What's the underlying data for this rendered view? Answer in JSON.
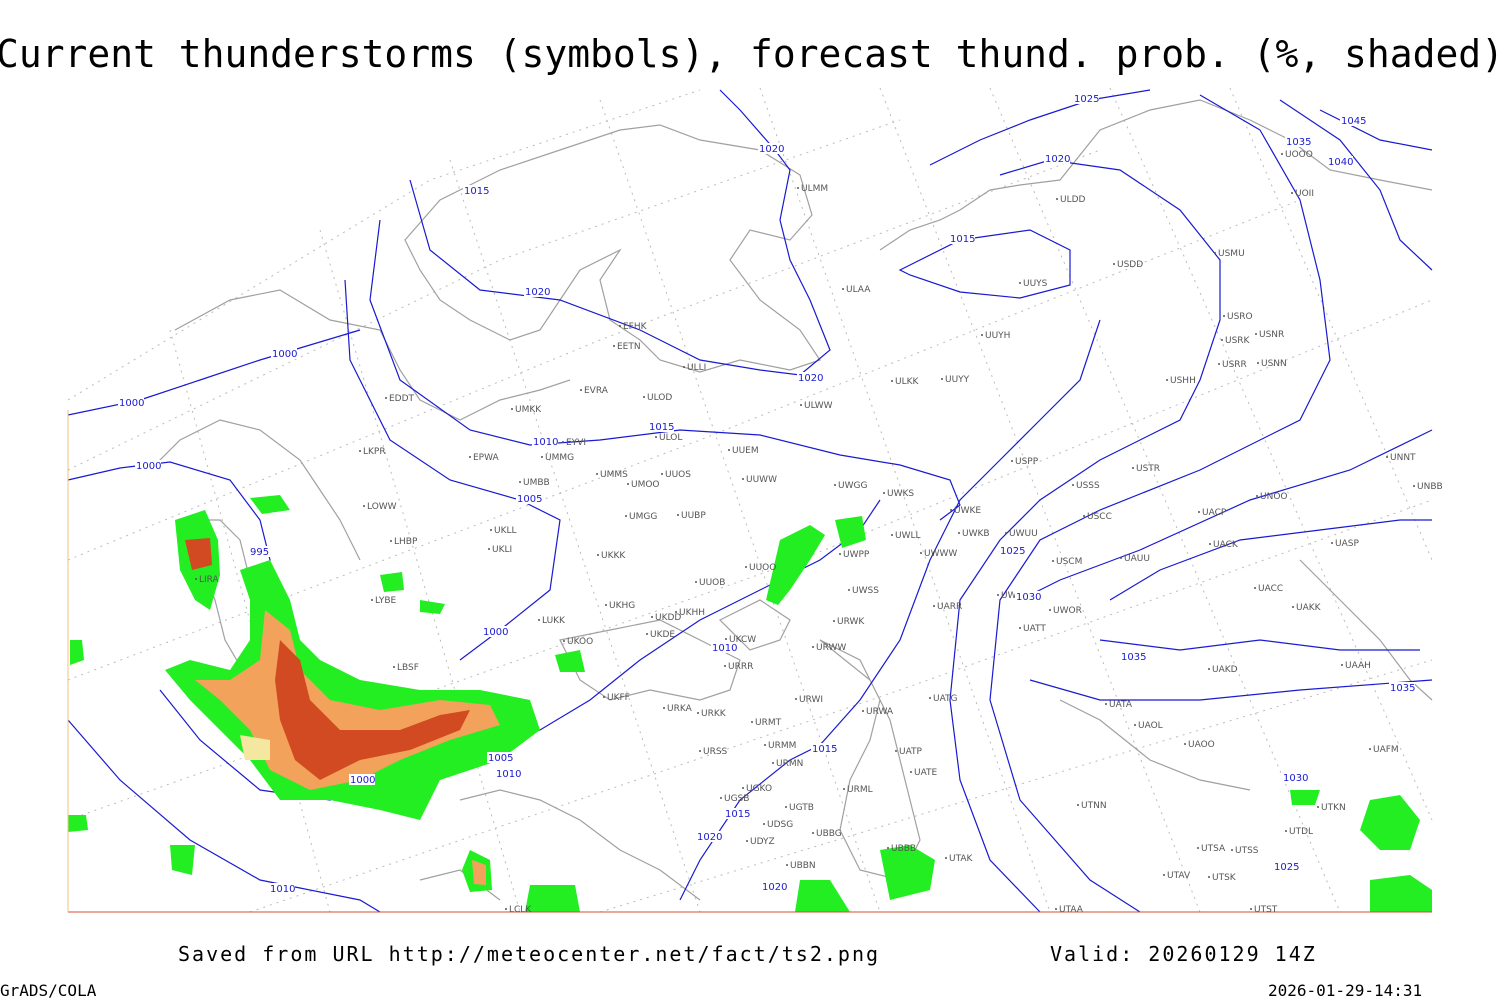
{
  "header": {
    "title": "Current thunderstorms (symbols), forecast thund. prob. (%, shaded)"
  },
  "footer": {
    "source": "Saved from URL http://meteocenter.net/fact/ts2.png",
    "valid": "Valid: 20260129 14Z",
    "software": "GrADS/COLA",
    "timestamp": "2026-01-29-14:31"
  },
  "isobar_labels": [
    1025,
    1035,
    1045,
    1040,
    1020,
    1020,
    1015,
    1015,
    1020,
    1000,
    1020,
    1000,
    1015,
    1010,
    1000,
    1005,
    995,
    1025,
    1030,
    1000,
    1010,
    1035,
    1035,
    1015,
    1005,
    1010,
    1000,
    1030,
    1015,
    1020,
    1025,
    1020,
    1010
  ],
  "stations": [
    "ULDD",
    "USDD",
    "USMU",
    "UUYS",
    "ULAA",
    "UUYH",
    "USRO",
    "USRK",
    "USNR",
    "USRR",
    "USNN",
    "USHH",
    "ULKK",
    "UUYY",
    "EFHK",
    "EETN",
    "ULLI",
    "EVRA",
    "ULOD",
    "EDDT",
    "ULWW",
    "UMKK",
    "ULOL",
    "EYVI",
    "UUEM",
    "EPWA",
    "UMMG",
    "LKPR",
    "USPP",
    "USTR",
    "UNNT",
    "UMMS",
    "UMOO",
    "UUOS",
    "UUWW",
    "UWGG",
    "UWKS",
    "USSS",
    "UNOO",
    "UNBB",
    "UMBB",
    "LOWW",
    "UWKE",
    "USCC",
    "UACP",
    "UMGG",
    "UUBP",
    "UKLL",
    "UWKB",
    "UWUU",
    "UWLL",
    "UACK",
    "UASP",
    "LHBP",
    "UKLI",
    "UWWW",
    "UWPP",
    "USCM",
    "UAUU",
    "UKKK",
    "UUOO",
    "LIRA",
    "LYBE",
    "UUOB",
    "UWSS",
    "UACC",
    "UAKK",
    "UWOO",
    "UWOR",
    "UARR",
    "UKHG",
    "UKDD",
    "UKHH",
    "LUKK",
    "URWK",
    "UATT",
    "UKOO",
    "UKDE",
    "UKCW",
    "URWW",
    "URRR",
    "LBSF",
    "UAKD",
    "UAAH",
    "UKFF",
    "URWI",
    "UATG",
    "URKA",
    "URKK",
    "URWA",
    "UATA",
    "URMT",
    "UAOL",
    "UAOO",
    "UAFM",
    "URMM",
    "UATP",
    "URMN",
    "UATE",
    "UGKO",
    "URML",
    "UGSB",
    "UTNN",
    "UGTB",
    "UDSG",
    "UBBG",
    "UTDL",
    "UDYZ",
    "UBBB",
    "UTSA",
    "UTSS",
    "UTAK",
    "UBBN",
    "UTAV",
    "UTSK",
    "UTST",
    "UTAA",
    "LCLK",
    "UOOO",
    "UOII",
    "ULMM",
    "UTKN",
    "URSS"
  ]
}
